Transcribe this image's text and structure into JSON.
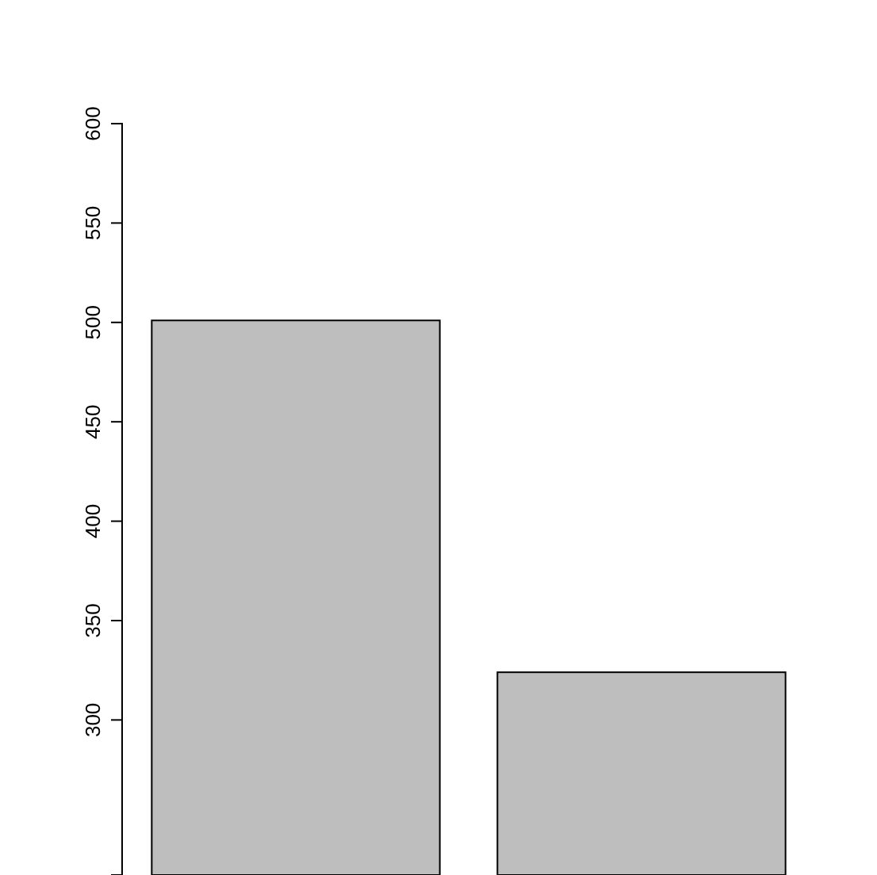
{
  "chart_data": {
    "type": "bar",
    "categories": [
      null,
      null
    ],
    "values": [
      501,
      324
    ],
    "color": "#bebebe",
    "ylim": [
      222,
      600
    ],
    "yticks": [
      300,
      350,
      400,
      450,
      500,
      550,
      600
    ]
  }
}
